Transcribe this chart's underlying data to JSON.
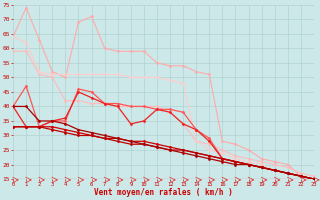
{
  "background_color": "#cce8e8",
  "grid_color": "#aacccc",
  "xlabel": "Vent moyen/en rafales ( km/h )",
  "xlabel_color": "#cc0000",
  "tick_color": "#cc0000",
  "x_min": 0,
  "x_max": 23,
  "y_min": 15,
  "y_max": 75,
  "y_ticks": [
    15,
    20,
    25,
    30,
    35,
    40,
    45,
    50,
    55,
    60,
    65,
    70,
    75
  ],
  "lines": [
    {
      "x": [
        0,
        1,
        2,
        3,
        4,
        5,
        6,
        7,
        8,
        9,
        10,
        11,
        12,
        13,
        14,
        15,
        16,
        17,
        18,
        19,
        20,
        21,
        22,
        23
      ],
      "y": [
        64,
        74,
        63,
        52,
        50,
        69,
        71,
        60,
        59,
        59,
        59,
        55,
        54,
        54,
        52,
        51,
        28,
        27,
        25,
        22,
        21,
        20,
        16,
        15
      ],
      "color": "#ffaaaa",
      "marker": "D",
      "markersize": 1.5,
      "linewidth": 0.8
    },
    {
      "x": [
        0,
        1,
        2,
        3,
        4,
        5,
        6,
        7,
        8,
        9,
        10,
        11,
        12,
        13,
        14,
        15,
        16,
        17,
        18,
        19,
        20,
        21,
        22,
        23
      ],
      "y": [
        59,
        59,
        51,
        50,
        42,
        42,
        41,
        41,
        40,
        40,
        40,
        40,
        38,
        34,
        28,
        27,
        25,
        23,
        22,
        21,
        20,
        19,
        17,
        16
      ],
      "color": "#ffbbbb",
      "marker": "D",
      "markersize": 1.5,
      "linewidth": 0.8
    },
    {
      "x": [
        0,
        1,
        2,
        3,
        4,
        5,
        6,
        7,
        8,
        9,
        10,
        11,
        12,
        13,
        14,
        15,
        16,
        17,
        18,
        19,
        20,
        21,
        22,
        23
      ],
      "y": [
        64,
        62,
        52,
        51,
        51,
        51,
        51,
        51,
        51,
        50,
        50,
        50,
        49,
        48,
        28,
        25,
        24,
        22,
        21,
        20,
        18,
        17,
        16,
        15
      ],
      "color": "#ffcccc",
      "marker": "D",
      "markersize": 1.5,
      "linewidth": 0.8
    },
    {
      "x": [
        0,
        1,
        2,
        3,
        4,
        5,
        6,
        7,
        8,
        9,
        10,
        11,
        12,
        13,
        14,
        15,
        16,
        17,
        18,
        19,
        20,
        21,
        22,
        23
      ],
      "y": [
        40,
        47,
        33,
        35,
        35,
        46,
        45,
        41,
        41,
        40,
        40,
        39,
        39,
        38,
        32,
        29,
        22,
        21,
        20,
        19,
        18,
        17,
        16,
        15
      ],
      "color": "#ff5555",
      "marker": "D",
      "markersize": 1.5,
      "linewidth": 0.9
    },
    {
      "x": [
        0,
        1,
        2,
        3,
        4,
        5,
        6,
        7,
        8,
        9,
        10,
        11,
        12,
        13,
        14,
        15,
        16,
        17,
        18,
        19,
        20,
        21,
        22,
        23
      ],
      "y": [
        40,
        33,
        33,
        35,
        36,
        45,
        43,
        41,
        40,
        34,
        35,
        39,
        38,
        34,
        32,
        28,
        22,
        21,
        20,
        19,
        18,
        17,
        16,
        15
      ],
      "color": "#ee2222",
      "marker": "D",
      "markersize": 1.5,
      "linewidth": 0.9
    },
    {
      "x": [
        0,
        1,
        2,
        3,
        4,
        5,
        6,
        7,
        8,
        9,
        10,
        11,
        12,
        13,
        14,
        15,
        16,
        17,
        18,
        19,
        20,
        21,
        22,
        23
      ],
      "y": [
        33,
        33,
        33,
        33,
        32,
        31,
        30,
        29,
        29,
        28,
        28,
        27,
        26,
        25,
        24,
        23,
        22,
        21,
        20,
        19,
        18,
        17,
        16,
        15
      ],
      "color": "#cc0000",
      "marker": "D",
      "markersize": 1.5,
      "linewidth": 0.9
    },
    {
      "x": [
        0,
        1,
        2,
        3,
        4,
        5,
        6,
        7,
        8,
        9,
        10,
        11,
        12,
        13,
        14,
        15,
        16,
        17,
        18,
        19,
        20,
        21,
        22,
        23
      ],
      "y": [
        33,
        33,
        33,
        32,
        31,
        30,
        30,
        29,
        28,
        27,
        27,
        26,
        25,
        25,
        24,
        23,
        22,
        21,
        20,
        19,
        18,
        17,
        16,
        15
      ],
      "color": "#bb0000",
      "marker": "D",
      "markersize": 1.5,
      "linewidth": 0.9
    },
    {
      "x": [
        0,
        1,
        2,
        3,
        4,
        5,
        6,
        7,
        8,
        9,
        10,
        11,
        12,
        13,
        14,
        15,
        16,
        17,
        18,
        19,
        20,
        21,
        22,
        23
      ],
      "y": [
        40,
        40,
        35,
        35,
        34,
        32,
        31,
        30,
        29,
        28,
        27,
        26,
        25,
        24,
        23,
        22,
        21,
        20,
        20,
        19,
        18,
        17,
        16,
        15
      ],
      "color": "#aa0000",
      "marker": "D",
      "markersize": 1.5,
      "linewidth": 0.9
    }
  ],
  "figwidth": 3.2,
  "figheight": 2.0,
  "dpi": 100
}
